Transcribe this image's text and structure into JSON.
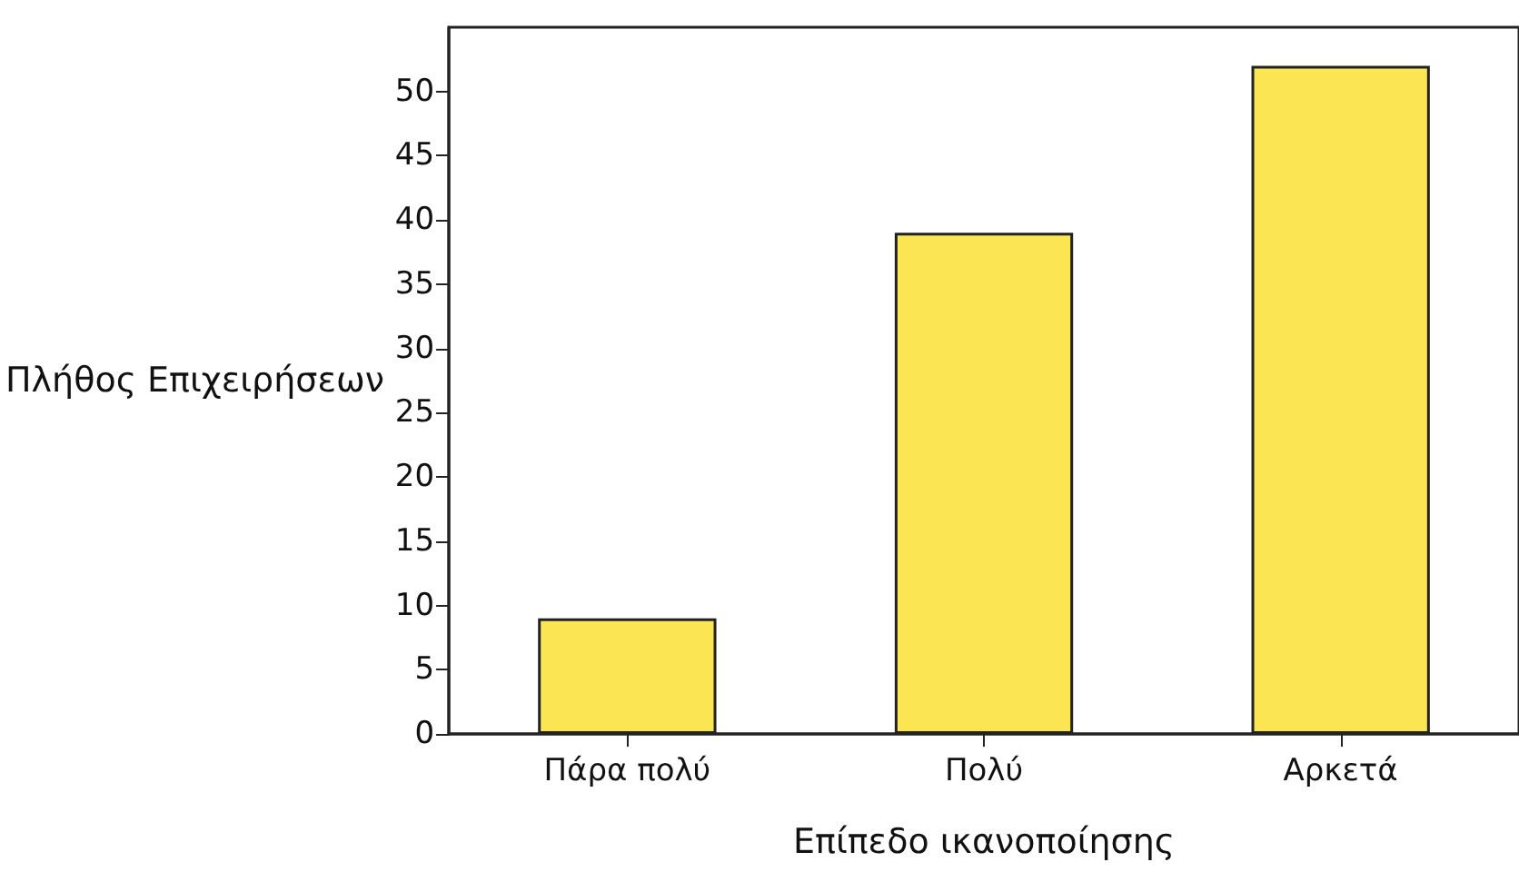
{
  "chart_data": {
    "type": "bar",
    "xlabel": "Επίπεδο ικανοποίησης",
    "ylabel": "Πλήθος Επιχειρήσεων",
    "categories": [
      "Πάρα πολύ",
      "Πολύ",
      "Αρκετά"
    ],
    "values": [
      9,
      39,
      52
    ],
    "color": "#fce552",
    "ylim": [
      0,
      55
    ],
    "yticks": [
      0,
      5,
      10,
      15,
      20,
      25,
      30,
      35,
      40,
      45,
      50
    ],
    "grid": false
  }
}
